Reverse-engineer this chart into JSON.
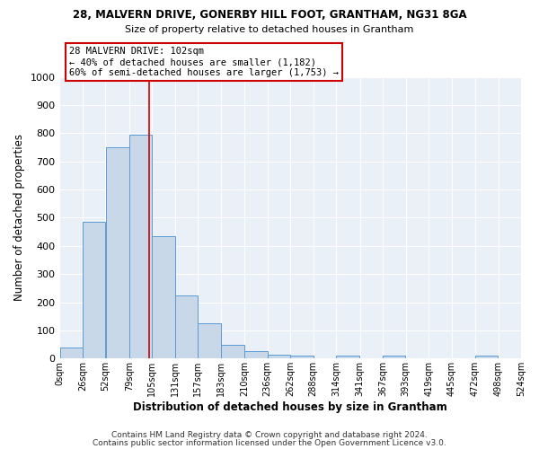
{
  "title1": "28, MALVERN DRIVE, GONERBY HILL FOOT, GRANTHAM, NG31 8GA",
  "title2": "Size of property relative to detached houses in Grantham",
  "xlabel": "Distribution of detached houses by size in Grantham",
  "ylabel": "Number of detached properties",
  "bar_color": "#c8d8e8",
  "bar_edge_color": "#5b9bd5",
  "background_color": "#eaf0f8",
  "grid_color": "#ffffff",
  "bin_edges": [
    0,
    26,
    52,
    79,
    105,
    131,
    157,
    183,
    210,
    236,
    262,
    288,
    314,
    341,
    367,
    393,
    419,
    445,
    472,
    498,
    524
  ],
  "bar_heights": [
    40,
    485,
    750,
    795,
    435,
    225,
    125,
    50,
    25,
    15,
    10,
    0,
    10,
    0,
    10,
    0,
    0,
    0,
    10,
    0
  ],
  "tick_labels": [
    "0sqm",
    "26sqm",
    "52sqm",
    "79sqm",
    "105sqm",
    "131sqm",
    "157sqm",
    "183sqm",
    "210sqm",
    "236sqm",
    "262sqm",
    "288sqm",
    "314sqm",
    "341sqm",
    "367sqm",
    "393sqm",
    "419sqm",
    "445sqm",
    "472sqm",
    "498sqm",
    "524sqm"
  ],
  "property_size": 102,
  "annotation_title": "28 MALVERN DRIVE: 102sqm",
  "annotation_line1": "← 40% of detached houses are smaller (1,182)",
  "annotation_line2": "60% of semi-detached houses are larger (1,753) →",
  "red_line_color": "#cc0000",
  "annotation_box_color": "#ffffff",
  "annotation_box_edge": "#cc0000",
  "ylim": [
    0,
    1000
  ],
  "footer1": "Contains HM Land Registry data © Crown copyright and database right 2024.",
  "footer2": "Contains public sector information licensed under the Open Government Licence v3.0."
}
